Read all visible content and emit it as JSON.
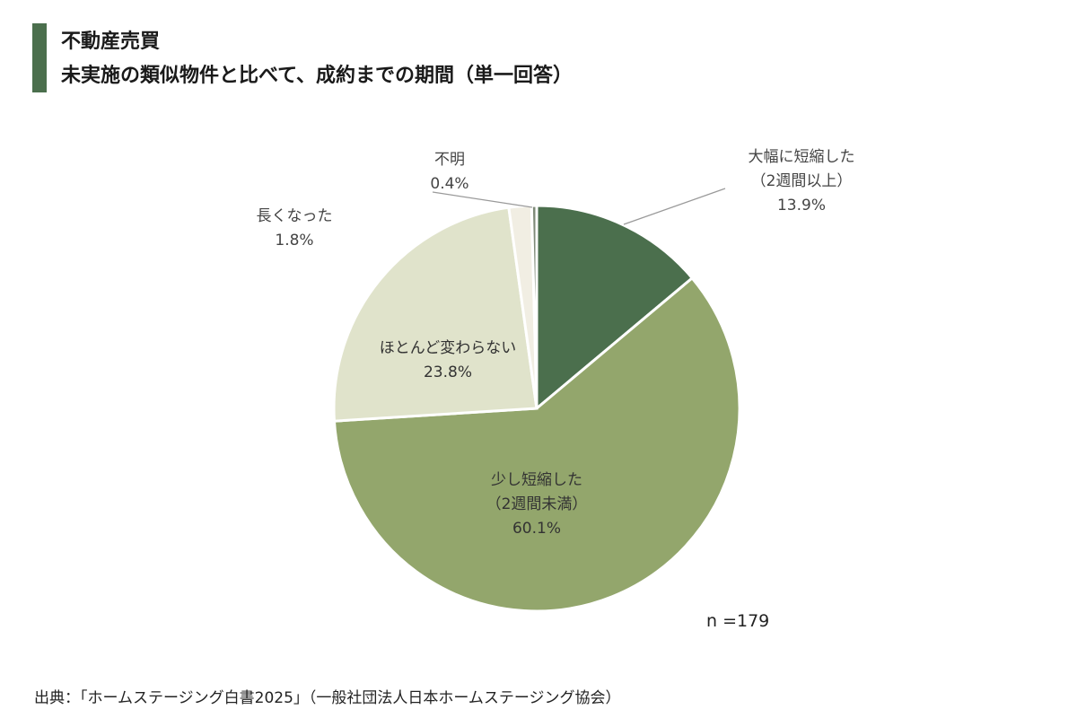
{
  "title": {
    "line1": "不動産売買",
    "line2": "未実施の類似物件と比べて、成約までの期間（単一回答）"
  },
  "chart_data": {
    "type": "pie",
    "slices": [
      {
        "label_lines": [
          "大幅に短縮した",
          "（2週間以上）"
        ],
        "value": 13.9,
        "value_label": "13.9%",
        "color": "#4b6f4d"
      },
      {
        "label_lines": [
          "少し短縮した",
          "（2週間未満）"
        ],
        "value": 60.1,
        "value_label": "60.1%",
        "color": "#93a66c"
      },
      {
        "label_lines": [
          "ほとんど変わらない"
        ],
        "value": 23.8,
        "value_label": "23.8%",
        "color": "#e0e3cb"
      },
      {
        "label_lines": [
          "長くなった"
        ],
        "value": 1.8,
        "value_label": "1.8%",
        "color": "#f1eee3"
      },
      {
        "label_lines": [
          "不明"
        ],
        "value": 0.4,
        "value_label": "0.4%",
        "color": "#7e8a78"
      }
    ],
    "start": "12 o'clock",
    "direction": "clockwise",
    "n_label": "n =179"
  },
  "source": "出典：「ホームステージング白書2025」（一般社団法人日本ホームステージング協会）"
}
